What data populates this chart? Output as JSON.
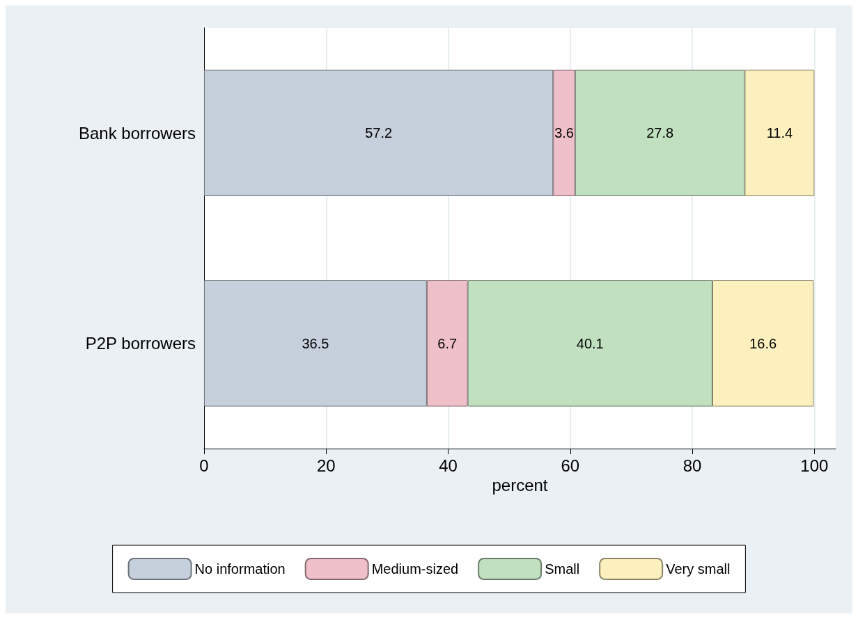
{
  "chart_data": {
    "type": "bar",
    "orientation": "horizontal",
    "stacked": true,
    "xlabel": "percent",
    "categories": [
      "Bank borrowers",
      "P2P borrowers"
    ],
    "series": [
      {
        "name": "No information",
        "color": "#c6d0dc",
        "values": [
          57.2,
          36.5
        ]
      },
      {
        "name": "Medium-sized",
        "color": "#efbfca",
        "values": [
          3.6,
          6.7
        ]
      },
      {
        "name": "Small",
        "color": "#c0e0c0",
        "values": [
          27.8,
          40.1
        ]
      },
      {
        "name": "Very small",
        "color": "#fdf0bf",
        "values": [
          11.4,
          16.6
        ]
      }
    ],
    "xlim": [
      0,
      103.5
    ],
    "xticks": [
      0,
      20,
      40,
      60,
      80,
      100
    ],
    "grid": "x",
    "legend": "bottom",
    "data_labels": true
  }
}
